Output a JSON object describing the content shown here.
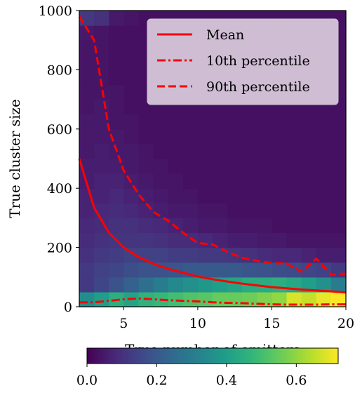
{
  "chart_data": {
    "type": "heatmap",
    "xlabel": "True number of emitters",
    "ylabel": "True cluster size",
    "xlim": [
      2,
      20
    ],
    "ylim": [
      0,
      1000
    ],
    "x_ticks": [
      5,
      10,
      15,
      20
    ],
    "y_ticks": [
      0,
      200,
      400,
      600,
      800,
      1000
    ],
    "colorbar": {
      "range": [
        0.0,
        0.72
      ],
      "ticks": [
        "0.0",
        "0.2",
        "0.4",
        "0.6"
      ],
      "colormap": "viridis",
      "placement": "below"
    },
    "heatmap_bins": {
      "x_bin_width": 1,
      "y_bin_width": 50
    },
    "heatmap_rows": [
      {
        "y_range": [
          0,
          50
        ],
        "values": [
          0.35,
          0.4,
          0.45,
          0.42,
          0.46,
          0.48,
          0.5,
          0.52,
          0.53,
          0.55,
          0.55,
          0.56,
          0.58,
          0.6,
          0.68,
          0.66,
          0.7,
          0.72
        ]
      },
      {
        "y_range": [
          50,
          100
        ],
        "values": [
          0.12,
          0.15,
          0.18,
          0.22,
          0.26,
          0.3,
          0.34,
          0.36,
          0.38,
          0.4,
          0.42,
          0.44,
          0.44,
          0.45,
          0.43,
          0.4,
          0.36,
          0.3
        ]
      },
      {
        "y_range": [
          100,
          150
        ],
        "values": [
          0.12,
          0.14,
          0.15,
          0.17,
          0.18,
          0.18,
          0.19,
          0.2,
          0.2,
          0.2,
          0.2,
          0.19,
          0.18,
          0.17,
          0.16,
          0.15,
          0.14,
          0.12
        ]
      },
      {
        "y_range": [
          150,
          200
        ],
        "values": [
          0.1,
          0.12,
          0.13,
          0.14,
          0.14,
          0.14,
          0.13,
          0.13,
          0.12,
          0.12,
          0.11,
          0.1,
          0.09,
          0.08,
          0.08,
          0.07,
          0.06,
          0.06
        ]
      },
      {
        "y_range": [
          200,
          250
        ],
        "values": [
          0.09,
          0.1,
          0.11,
          0.11,
          0.11,
          0.1,
          0.09,
          0.09,
          0.08,
          0.07,
          0.06,
          0.06,
          0.05,
          0.05,
          0.04,
          0.04,
          0.04,
          0.04
        ]
      },
      {
        "y_range": [
          250,
          300
        ],
        "values": [
          0.08,
          0.09,
          0.1,
          0.1,
          0.09,
          0.08,
          0.07,
          0.06,
          0.05,
          0.05,
          0.04,
          0.04,
          0.04,
          0.03,
          0.03,
          0.03,
          0.03,
          0.03
        ]
      },
      {
        "y_range": [
          300,
          350
        ],
        "values": [
          0.07,
          0.08,
          0.09,
          0.08,
          0.07,
          0.06,
          0.05,
          0.05,
          0.04,
          0.04,
          0.03,
          0.03,
          0.03,
          0.03,
          0.03,
          0.03,
          0.03,
          0.03
        ]
      },
      {
        "y_range": [
          350,
          400
        ],
        "values": [
          0.07,
          0.07,
          0.08,
          0.07,
          0.06,
          0.05,
          0.04,
          0.04,
          0.03,
          0.03,
          0.03,
          0.03,
          0.03,
          0.03,
          0.03,
          0.03,
          0.03,
          0.03
        ]
      },
      {
        "y_range": [
          400,
          450
        ],
        "values": [
          0.06,
          0.07,
          0.07,
          0.06,
          0.05,
          0.04,
          0.04,
          0.03,
          0.03,
          0.03,
          0.03,
          0.03,
          0.03,
          0.03,
          0.03,
          0.03,
          0.03,
          0.03
        ]
      },
      {
        "y_range": [
          450,
          500
        ],
        "values": [
          0.06,
          0.06,
          0.06,
          0.05,
          0.04,
          0.04,
          0.03,
          0.03,
          0.03,
          0.03,
          0.03,
          0.03,
          0.03,
          0.03,
          0.03,
          0.03,
          0.03,
          0.03
        ]
      },
      {
        "y_range": [
          500,
          550
        ],
        "values": [
          0.05,
          0.06,
          0.05,
          0.05,
          0.04,
          0.03,
          0.03,
          0.03,
          0.03,
          0.03,
          0.03,
          0.03,
          0.03,
          0.03,
          0.03,
          0.03,
          0.03,
          0.03
        ]
      },
      {
        "y_range": [
          550,
          600
        ],
        "values": [
          0.05,
          0.05,
          0.05,
          0.04,
          0.03,
          0.03,
          0.03,
          0.03,
          0.03,
          0.03,
          0.03,
          0.03,
          0.03,
          0.03,
          0.03,
          0.03,
          0.03,
          0.03
        ]
      },
      {
        "y_range": [
          600,
          650
        ],
        "values": [
          0.05,
          0.05,
          0.04,
          0.04,
          0.03,
          0.03,
          0.03,
          0.03,
          0.03,
          0.03,
          0.03,
          0.03,
          0.03,
          0.03,
          0.03,
          0.03,
          0.03,
          0.03
        ]
      },
      {
        "y_range": [
          650,
          700
        ],
        "values": [
          0.04,
          0.05,
          0.04,
          0.03,
          0.03,
          0.03,
          0.03,
          0.03,
          0.03,
          0.03,
          0.03,
          0.03,
          0.03,
          0.03,
          0.03,
          0.03,
          0.03,
          0.03
        ]
      },
      {
        "y_range": [
          700,
          750
        ],
        "values": [
          0.04,
          0.04,
          0.04,
          0.03,
          0.03,
          0.03,
          0.03,
          0.03,
          0.03,
          0.03,
          0.03,
          0.03,
          0.03,
          0.03,
          0.03,
          0.03,
          0.03,
          0.03
        ]
      },
      {
        "y_range": [
          750,
          800
        ],
        "values": [
          0.04,
          0.04,
          0.03,
          0.03,
          0.03,
          0.03,
          0.03,
          0.03,
          0.03,
          0.03,
          0.03,
          0.03,
          0.03,
          0.03,
          0.03,
          0.03,
          0.03,
          0.03
        ]
      },
      {
        "y_range": [
          800,
          850
        ],
        "values": [
          0.04,
          0.04,
          0.03,
          0.03,
          0.03,
          0.03,
          0.03,
          0.03,
          0.03,
          0.03,
          0.03,
          0.03,
          0.03,
          0.03,
          0.03,
          0.03,
          0.03,
          0.03
        ]
      },
      {
        "y_range": [
          850,
          900
        ],
        "values": [
          0.04,
          0.04,
          0.03,
          0.03,
          0.03,
          0.03,
          0.03,
          0.03,
          0.03,
          0.03,
          0.03,
          0.03,
          0.03,
          0.03,
          0.03,
          0.03,
          0.03,
          0.03
        ]
      },
      {
        "y_range": [
          900,
          950
        ],
        "values": [
          0.05,
          0.04,
          0.03,
          0.03,
          0.03,
          0.03,
          0.03,
          0.03,
          0.03,
          0.03,
          0.03,
          0.03,
          0.03,
          0.03,
          0.03,
          0.03,
          0.03,
          0.03
        ]
      },
      {
        "y_range": [
          950,
          1000
        ],
        "values": [
          0.12,
          0.1,
          0.05,
          0.04,
          0.03,
          0.03,
          0.03,
          0.03,
          0.03,
          0.03,
          0.03,
          0.03,
          0.03,
          0.03,
          0.03,
          0.03,
          0.03,
          0.03
        ]
      }
    ],
    "series": [
      {
        "name": "Mean",
        "style": "solid",
        "color": "#ff0000",
        "x": [
          2,
          3,
          4,
          5,
          6,
          7,
          8,
          9,
          10,
          11,
          12,
          13,
          14,
          15,
          16,
          17,
          18,
          19,
          20
        ],
        "y": [
          500,
          335,
          250,
          200,
          168,
          145,
          128,
          115,
          102,
          93,
          85,
          78,
          72,
          66,
          62,
          58,
          55,
          52,
          48
        ]
      },
      {
        "name": "10th percentile",
        "style": "dashdot",
        "color": "#ff0000",
        "x": [
          2,
          3,
          4,
          5,
          6,
          7,
          8,
          9,
          10,
          11,
          12,
          13,
          14,
          15,
          16,
          17,
          18,
          19,
          20
        ],
        "y": [
          15,
          15,
          20,
          25,
          28,
          25,
          22,
          20,
          18,
          15,
          13,
          12,
          10,
          8,
          7,
          7,
          7,
          8,
          8
        ]
      },
      {
        "name": "90th percentile",
        "style": "dashed",
        "color": "#ff0000",
        "x": [
          2,
          3,
          4,
          5,
          6,
          7,
          8,
          9,
          10,
          11,
          12,
          13,
          14,
          15,
          16,
          17,
          18,
          19,
          20
        ],
        "y": [
          980,
          900,
          600,
          460,
          380,
          320,
          290,
          250,
          215,
          210,
          185,
          165,
          155,
          148,
          146,
          118,
          162,
          108,
          112
        ]
      }
    ],
    "legend": {
      "placement": "top-right",
      "entries": [
        "Mean",
        "10th percentile",
        "90th percentile"
      ]
    }
  }
}
